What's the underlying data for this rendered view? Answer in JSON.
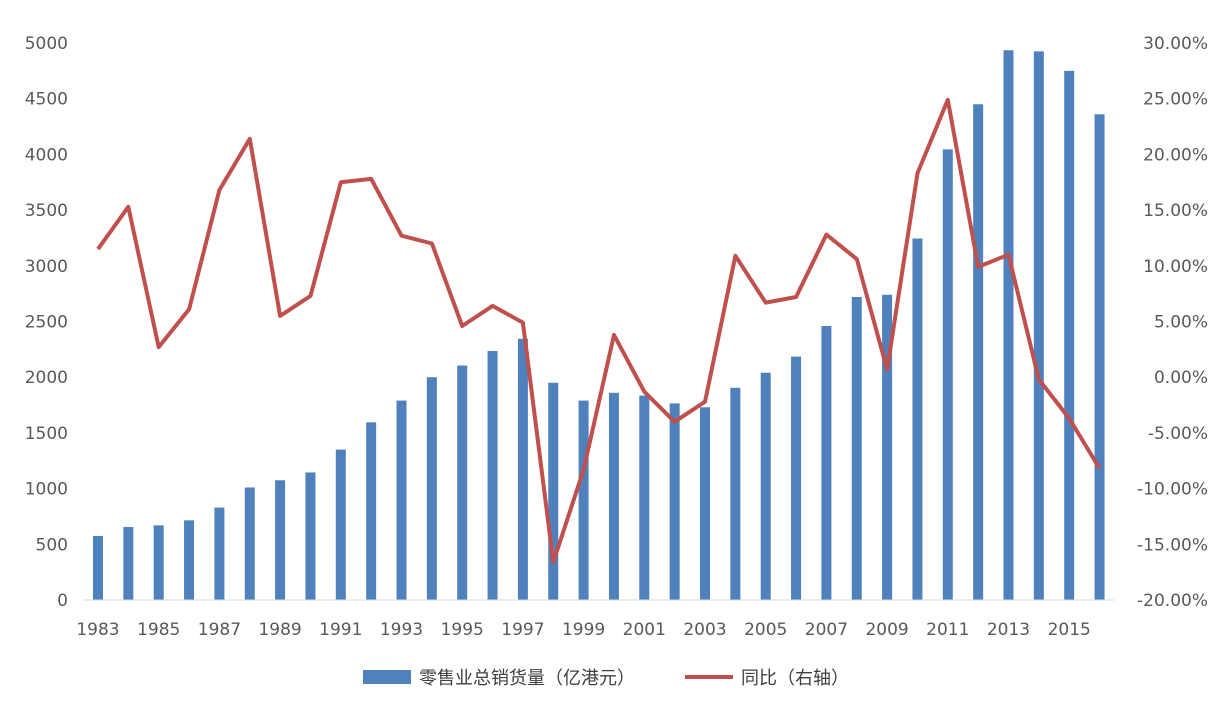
{
  "chart_data": {
    "type": "bar+line",
    "title": "",
    "x": [
      1983,
      1984,
      1985,
      1986,
      1987,
      1988,
      1989,
      1990,
      1991,
      1992,
      1993,
      1994,
      1995,
      1996,
      1997,
      1998,
      1999,
      2000,
      2001,
      2002,
      2003,
      2004,
      2005,
      2006,
      2007,
      2008,
      2009,
      2010,
      2011,
      2012,
      2013,
      2014,
      2015,
      2016
    ],
    "x_tick_labels": [
      "1983",
      "1985",
      "1987",
      "1989",
      "1991",
      "1993",
      "1995",
      "1997",
      "1999",
      "2001",
      "2003",
      "2005",
      "2007",
      "2009",
      "2011",
      "2013",
      "2015"
    ],
    "y_left": {
      "range": [
        0,
        5000
      ],
      "ticks": [
        "0",
        "500",
        "1000",
        "1500",
        "2000",
        "2500",
        "3000",
        "3500",
        "4000",
        "4500",
        "5000"
      ]
    },
    "y_right": {
      "range": [
        -0.2,
        0.3
      ],
      "ticks": [
        "-20.00%",
        "-15.00%",
        "-10.00%",
        "-5.00%",
        "0.00%",
        "5.00%",
        "10.00%",
        "15.00%",
        "20.00%",
        "25.00%",
        "30.00%"
      ]
    },
    "series": [
      {
        "name": "零售业总销货量（亿港元）",
        "type": "bar",
        "axis": "left",
        "color": "#4F81BD",
        "values": [
          575,
          655,
          670,
          715,
          830,
          1010,
          1075,
          1145,
          1350,
          1595,
          1790,
          2000,
          2105,
          2235,
          2345,
          1950,
          1790,
          1860,
          1835,
          1765,
          1730,
          1905,
          2040,
          2185,
          2460,
          2720,
          2740,
          3245,
          4045,
          4450,
          4935,
          4925,
          4750,
          4360
        ]
      },
      {
        "name": "同比（右轴）",
        "type": "line",
        "axis": "right",
        "color": "#C0504D",
        "values": [
          0.115,
          0.153,
          0.027,
          0.061,
          0.168,
          0.214,
          0.055,
          0.073,
          0.175,
          0.178,
          0.127,
          0.12,
          0.046,
          0.064,
          0.049,
          -0.166,
          -0.083,
          0.038,
          -0.013,
          -0.04,
          -0.022,
          0.109,
          0.067,
          0.072,
          0.128,
          0.106,
          0.007,
          0.183,
          0.249,
          0.099,
          0.11,
          -0.002,
          -0.037,
          -0.082
        ]
      }
    ],
    "grid": false,
    "legend": "bottom"
  }
}
